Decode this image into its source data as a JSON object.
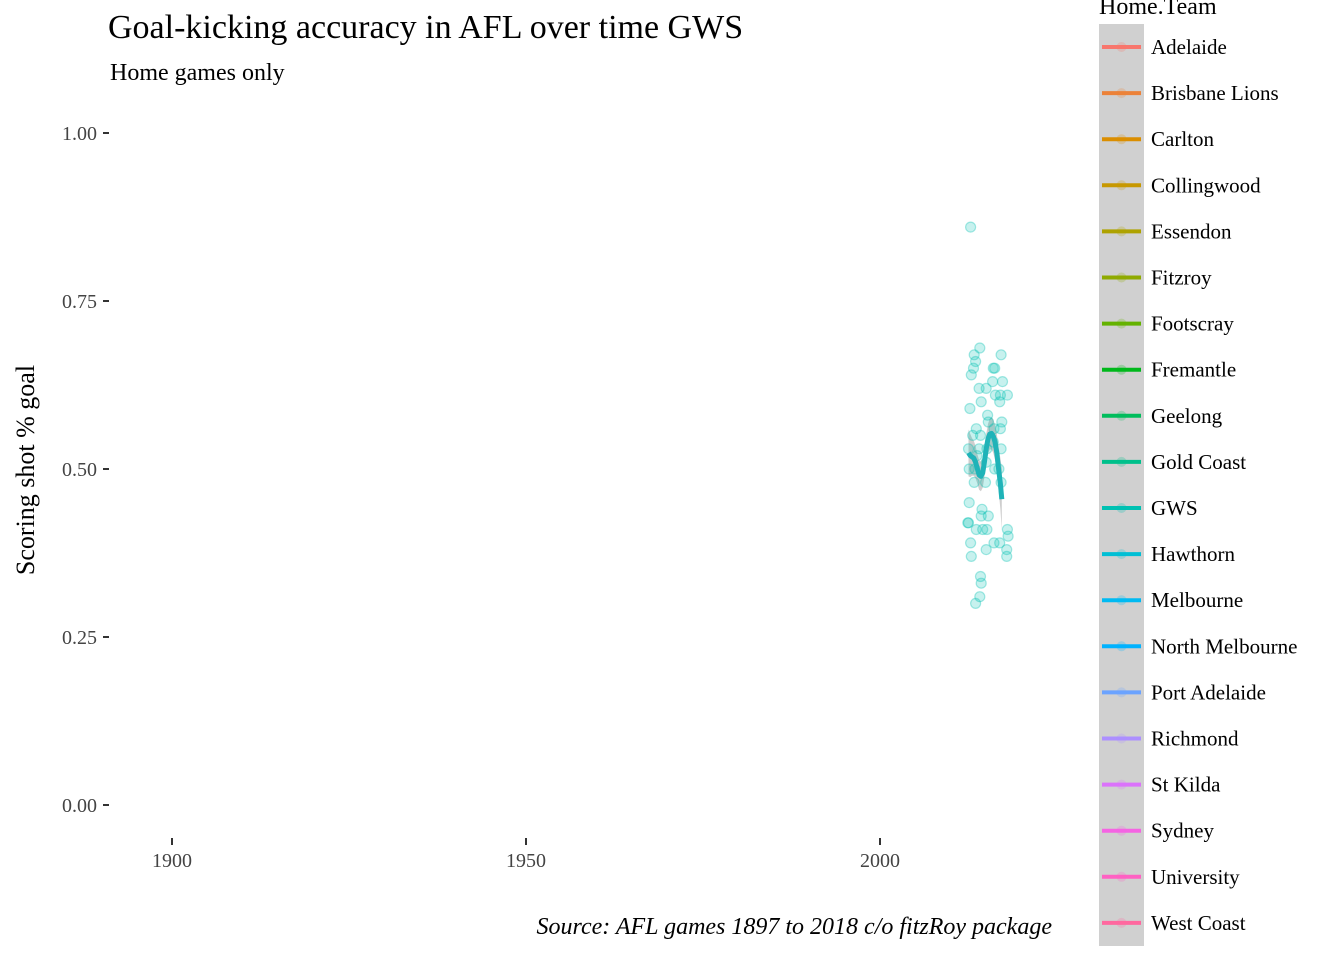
{
  "chart_data": {
    "type": "scatter",
    "title": "Goal-kicking accuracy in AFL over time GWS",
    "subtitle": "Home games only",
    "xlabel": "",
    "ylabel": "Scoring shot % goal",
    "caption": "Source: AFL games 1897 to 2018 c/o fitzRoy package",
    "xlim": [
      1890,
      2023
    ],
    "ylim": [
      -0.04,
      1.05
    ],
    "x_ticks": [
      1900,
      1950,
      2000
    ],
    "x_tick_labels": [
      "1900",
      "1950",
      "2000"
    ],
    "y_ticks": [
      0,
      0.25,
      0.5,
      0.75,
      1
    ],
    "y_tick_labels": [
      "0.00",
      "0.25",
      "0.50",
      "0.75",
      "1.00"
    ],
    "grid": false,
    "legend": {
      "title": "Home.Team",
      "position": "right",
      "background": "#d0d0d0",
      "entries": [
        {
          "name": "Adelaide",
          "color": "#F8766D"
        },
        {
          "name": "Brisbane Lions",
          "color": "#EC8239"
        },
        {
          "name": "Carlton",
          "color": "#DB8E00"
        },
        {
          "name": "Collingwood",
          "color": "#C79800"
        },
        {
          "name": "Essendon",
          "color": "#AEA200"
        },
        {
          "name": "Fitzroy",
          "color": "#8FAA00"
        },
        {
          "name": "Footscray",
          "color": "#64B200"
        },
        {
          "name": "Fremantle",
          "color": "#00B81B"
        },
        {
          "name": "Geelong",
          "color": "#00BD5C"
        },
        {
          "name": "Gold Coast",
          "color": "#00C08B"
        },
        {
          "name": "GWS",
          "color": "#00C1B2"
        },
        {
          "name": "Hawthorn",
          "color": "#00BFD5"
        },
        {
          "name": "Melbourne",
          "color": "#00BAF2"
        },
        {
          "name": "North Melbourne",
          "color": "#00B2FF"
        },
        {
          "name": "Port Adelaide",
          "color": "#6BA3FF"
        },
        {
          "name": "Richmond",
          "color": "#AD8FFF"
        },
        {
          "name": "St Kilda",
          "color": "#DB72FB"
        },
        {
          "name": "Sydney",
          "color": "#F564E3"
        },
        {
          "name": "University",
          "color": "#FF61C3"
        },
        {
          "name": "West Coast",
          "color": "#FF689F"
        }
      ]
    },
    "series": [
      {
        "team_color": "#00C1B2",
        "smooth_color": "#1fb3b8",
        "ribbon_color": "#bdbdbd",
        "points": [
          [
            2012.8,
            0.86
          ],
          [
            2012.5,
            0.53
          ],
          [
            2012.7,
            0.59
          ],
          [
            2012.9,
            0.64
          ],
          [
            2012.6,
            0.45
          ],
          [
            2012.4,
            0.42
          ],
          [
            2012.8,
            0.39
          ],
          [
            2012.9,
            0.37
          ],
          [
            2012.6,
            0.5
          ],
          [
            2012.5,
            0.42
          ],
          [
            2013.3,
            0.67
          ],
          [
            2013.5,
            0.66
          ],
          [
            2013.2,
            0.65
          ],
          [
            2013.6,
            0.56
          ],
          [
            2013.7,
            0.52
          ],
          [
            2013.4,
            0.5
          ],
          [
            2013.1,
            0.55
          ],
          [
            2013.6,
            0.41
          ],
          [
            2013.5,
            0.3
          ],
          [
            2013.3,
            0.48
          ],
          [
            2014.1,
            0.68
          ],
          [
            2014.0,
            0.62
          ],
          [
            2014.3,
            0.6
          ],
          [
            2014.2,
            0.55
          ],
          [
            2014.0,
            0.53
          ],
          [
            2014.4,
            0.44
          ],
          [
            2014.3,
            0.43
          ],
          [
            2014.2,
            0.34
          ],
          [
            2014.3,
            0.33
          ],
          [
            2014.1,
            0.31
          ],
          [
            2014.5,
            0.41
          ],
          [
            2015.0,
            0.62
          ],
          [
            2015.2,
            0.58
          ],
          [
            2015.3,
            0.57
          ],
          [
            2015.1,
            0.53
          ],
          [
            2015.0,
            0.51
          ],
          [
            2014.9,
            0.48
          ],
          [
            2015.3,
            0.43
          ],
          [
            2015.1,
            0.41
          ],
          [
            2015.0,
            0.38
          ],
          [
            2016.0,
            0.65
          ],
          [
            2016.2,
            0.65
          ],
          [
            2015.9,
            0.63
          ],
          [
            2016.3,
            0.61
          ],
          [
            2016.1,
            0.56
          ],
          [
            2016.0,
            0.54
          ],
          [
            2016.2,
            0.5
          ],
          [
            2016.1,
            0.39
          ],
          [
            2017.1,
            0.67
          ],
          [
            2017.0,
            0.61
          ],
          [
            2016.9,
            0.6
          ],
          [
            2017.3,
            0.63
          ],
          [
            2017.2,
            0.57
          ],
          [
            2017.0,
            0.56
          ],
          [
            2017.1,
            0.53
          ],
          [
            2016.8,
            0.5
          ],
          [
            2017.1,
            0.48
          ],
          [
            2016.9,
            0.39
          ],
          [
            2018.0,
            0.61
          ],
          [
            2018.0,
            0.41
          ],
          [
            2018.1,
            0.4
          ],
          [
            2017.9,
            0.38
          ],
          [
            2017.9,
            0.37
          ]
        ],
        "smooth": [
          [
            2012.5,
            0.524
          ],
          [
            2012.75,
            0.52
          ],
          [
            2013.0,
            0.518
          ],
          [
            2013.25,
            0.516
          ],
          [
            2013.5,
            0.51
          ],
          [
            2013.75,
            0.5
          ],
          [
            2014.0,
            0.491
          ],
          [
            2014.25,
            0.489
          ],
          [
            2014.5,
            0.494
          ],
          [
            2014.75,
            0.51
          ],
          [
            2015.0,
            0.53
          ],
          [
            2015.25,
            0.545
          ],
          [
            2015.5,
            0.552
          ],
          [
            2015.75,
            0.553
          ],
          [
            2016.0,
            0.549
          ],
          [
            2016.25,
            0.54
          ],
          [
            2016.5,
            0.524
          ],
          [
            2016.75,
            0.5
          ],
          [
            2017.0,
            0.478
          ],
          [
            2017.2,
            0.455
          ]
        ],
        "ribbon_half_width": [
          0.035,
          0.032,
          0.028,
          0.026,
          0.024,
          0.022,
          0.022,
          0.022,
          0.022,
          0.022,
          0.022,
          0.022,
          0.023,
          0.024,
          0.025,
          0.026,
          0.028,
          0.032,
          0.038,
          0.046
        ]
      }
    ]
  }
}
